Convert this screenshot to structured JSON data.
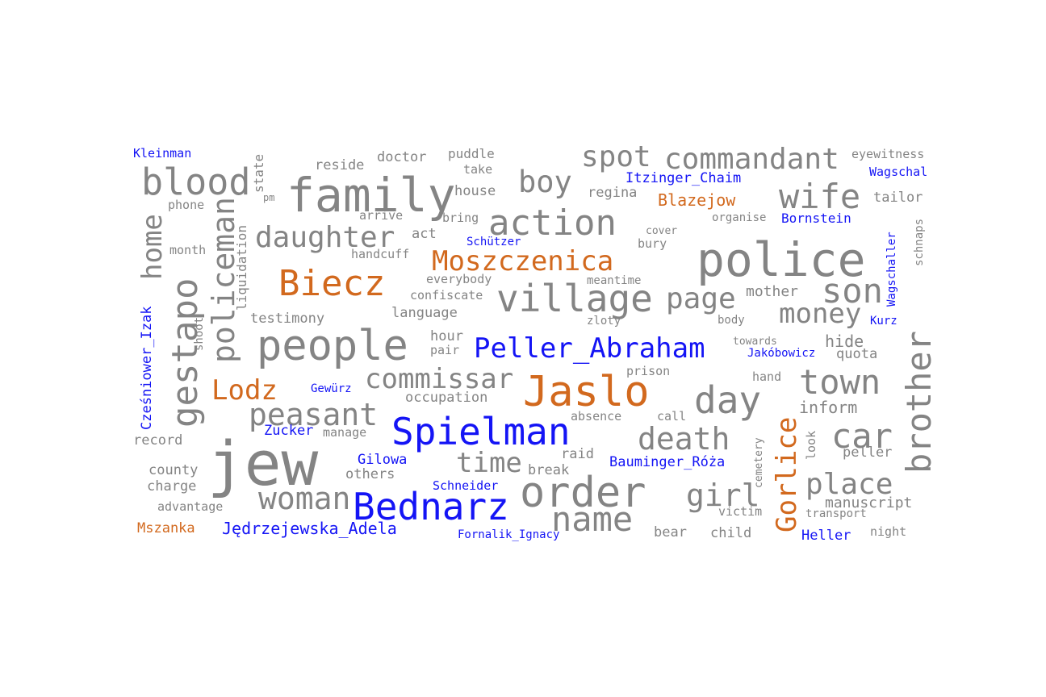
{
  "colors": {
    "common": "#848484",
    "person": "#1414f5",
    "place": "#d2691e",
    "camp": "#ff33cc"
  },
  "words": {
    "kleinman": "Kleinman",
    "state": "state",
    "reside": "reside",
    "doctor": "doctor",
    "puddle": "puddle",
    "take": "take",
    "spot": "spot",
    "commandant": "commandant",
    "eyewitness": "eyewitness",
    "wagschal": "Wagschal",
    "blood": "blood",
    "family": "family",
    "boy": "boy",
    "itzinger_chaim": "Itzinger_Chaim",
    "wife": "wife",
    "pm": "pm",
    "house": "house",
    "regina": "regina",
    "blazejow": "Blazejow",
    "tailor": "tailor",
    "phone": "phone",
    "arrive": "arrive",
    "bring": "bring",
    "action": "action",
    "organise": "organise",
    "bornstein": "Bornstein",
    "home": "home",
    "policeman": "policeman",
    "liquidation": "liquidation",
    "daughter": "daughter",
    "act": "act",
    "schutzer": "Schützer",
    "cover": "cover",
    "bury": "bury",
    "schnaps": "schnaps",
    "month": "month",
    "handcuff": "handcuff",
    "moszczenica": "Moszczenica",
    "police": "police",
    "wagschaller": "Wagschaller",
    "gestapo": "gestapo",
    "biecz": "Biecz",
    "everybody": "everybody",
    "meantime": "meantime",
    "confiscate": "confiscate",
    "village": "village",
    "page": "page",
    "mother": "mother",
    "son": "son",
    "czesniower_izak": "Cześniower_Izak",
    "testimony": "testimony",
    "language": "language",
    "zloty": "zloty",
    "body": "body",
    "money": "money",
    "kurz": "Kurz",
    "shoot": "shoot",
    "people": "people",
    "hour": "hour",
    "pair": "pair",
    "peller_abraham": "Peller_Abraham",
    "towards": "towards",
    "hide": "hide",
    "brother": "brother",
    "jakobowicz": "Jakóbowicz",
    "quota": "quota",
    "prison": "prison",
    "commissar": "commissar",
    "hand": "hand",
    "town": "town",
    "lodz": "Lodz",
    "gewurz": "Gewürz",
    "jaslo": "Jaslo",
    "occupation": "occupation",
    "day": "day",
    "inform": "inform",
    "peasant": "peasant",
    "absence": "absence",
    "call": "call",
    "gorlice": "Gorlice",
    "zucker": "Zucker",
    "manage": "manage",
    "spielman": "Spielman",
    "death": "death",
    "car": "car",
    "record": "record",
    "jew": "jew",
    "look": "look",
    "cemetery": "cemetery",
    "raid": "raid",
    "peller": "peller",
    "gilowa": "Gilowa",
    "time": "time",
    "county": "county",
    "others": "others",
    "break": "break",
    "bauminger_roza": "Bauminger_Róża",
    "charge": "charge",
    "schneider": "Schneider",
    "order": "order",
    "place": "place",
    "woman": "woman",
    "girl": "girl",
    "advantage": "advantage",
    "bednarz": "Bednarz",
    "manuscript": "manuscript",
    "victim": "victim",
    "transport": "transport",
    "name": "name",
    "mszanka": "Mszanka",
    "jedrzejewska_adela": "Jędrzejewska_Adela",
    "fornalik_ignacy": "Fornalik_Ignacy",
    "bear": "bear",
    "child": "child",
    "heller": "Heller",
    "night": "night"
  }
}
